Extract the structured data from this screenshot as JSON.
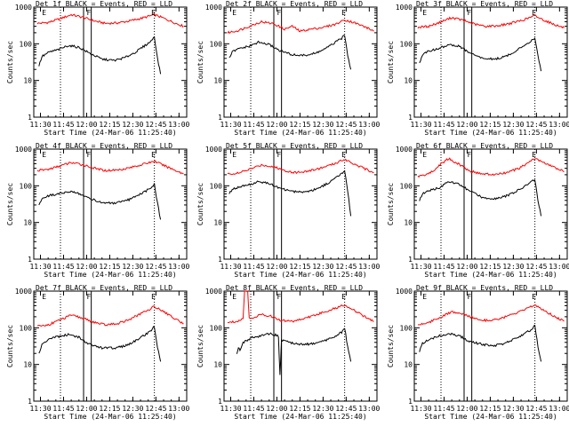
{
  "chart_data": [
    {
      "type": "line",
      "title": "Det 1f BLACK = Events, RED = LLD",
      "xlabel": "Start Time (24-Mar-06 11:25:40)",
      "ylabel": "Counts/sec",
      "x_tick_labels": [
        "11:30",
        "11:45",
        "12:00",
        "12:15",
        "12:30",
        "12:45",
        "13:00"
      ],
      "y_tick_labels": [
        "1",
        "10",
        "100",
        "1000"
      ],
      "yscale": "log",
      "ylim": [
        1,
        1000
      ],
      "xlim": [
        "11:25:40",
        "13:05"
      ],
      "markers": [
        "E",
        "F",
        "E"
      ],
      "series": [
        {
          "color": "#ff0000",
          "x": [
            "11:28",
            "11:35",
            "11:42",
            "11:50",
            "11:58",
            "12:05",
            "12:12",
            "12:20",
            "12:28",
            "12:36",
            "12:44",
            "12:50",
            "12:58",
            "13:03"
          ],
          "values": [
            360,
            380,
            470,
            620,
            520,
            420,
            360,
            370,
            420,
            500,
            620,
            500,
            360,
            300
          ]
        },
        {
          "color": "#000000",
          "x": [
            "11:29",
            "11:31",
            "11:36",
            "11:42",
            "11:48",
            "11:55",
            "12:02",
            "12:10",
            "12:18",
            "12:25",
            "12:32",
            "12:38",
            "12:42",
            "12:44",
            "12:46",
            "12:48"
          ],
          "values": [
            25,
            45,
            60,
            70,
            90,
            80,
            55,
            38,
            35,
            42,
            60,
            90,
            120,
            160,
            40,
            15
          ]
        }
      ]
    },
    {
      "type": "line",
      "title": "Det 2f BLACK = Events, RED = LLD",
      "xlabel": "Start Time (24-Mar-06 11:25:40)",
      "ylabel": "Counts/sec",
      "x_tick_labels": [
        "11:30",
        "11:45",
        "12:00",
        "12:15",
        "12:30",
        "12:45",
        "13:00"
      ],
      "y_tick_labels": [
        "1",
        "10",
        "100",
        "1000"
      ],
      "yscale": "log",
      "ylim": [
        1,
        1000
      ],
      "xlim": [
        "11:25:40",
        "13:05"
      ],
      "markers": [
        "E",
        "F",
        "E"
      ],
      "series": [
        {
          "color": "#ff0000",
          "x": [
            "11:28",
            "11:35",
            "11:42",
            "11:50",
            "11:58",
            "12:05",
            "12:10",
            "12:15",
            "12:22",
            "12:30",
            "12:38",
            "12:44",
            "12:50",
            "12:58",
            "13:03"
          ],
          "values": [
            200,
            230,
            300,
            400,
            350,
            250,
            300,
            220,
            250,
            280,
            340,
            450,
            380,
            280,
            220
          ]
        },
        {
          "color": "#000000",
          "x": [
            "11:29",
            "11:31",
            "11:36",
            "11:42",
            "11:48",
            "11:55",
            "12:02",
            "12:10",
            "12:18",
            "12:25",
            "12:32",
            "12:38",
            "12:42",
            "12:44",
            "12:46",
            "12:48"
          ],
          "values": [
            40,
            60,
            75,
            85,
            110,
            95,
            65,
            50,
            48,
            55,
            75,
            110,
            140,
            170,
            50,
            20
          ]
        }
      ]
    },
    {
      "type": "line",
      "title": "Det 3f BLACK = Events, RED = LLD",
      "xlabel": "Start Time (24-Mar-06 11:25:40)",
      "ylabel": "Counts/sec",
      "x_tick_labels": [
        "11:30",
        "11:45",
        "12:00",
        "12:15",
        "12:30",
        "12:45",
        "13:00"
      ],
      "y_tick_labels": [
        "1",
        "10",
        "100",
        "1000"
      ],
      "yscale": "log",
      "ylim": [
        1,
        1000
      ],
      "xlim": [
        "11:25:40",
        "13:05"
      ],
      "markers": [
        "E",
        "F",
        "E"
      ],
      "series": [
        {
          "color": "#ff0000",
          "x": [
            "11:28",
            "11:35",
            "11:42",
            "11:50",
            "11:58",
            "12:05",
            "12:12",
            "12:20",
            "12:28",
            "12:36",
            "12:44",
            "12:50",
            "12:58",
            "13:03"
          ],
          "values": [
            280,
            300,
            380,
            520,
            430,
            340,
            300,
            310,
            360,
            440,
            580,
            440,
            320,
            270
          ]
        },
        {
          "color": "#000000",
          "x": [
            "11:29",
            "11:31",
            "11:36",
            "11:42",
            "11:48",
            "11:55",
            "12:02",
            "12:10",
            "12:18",
            "12:25",
            "12:32",
            "12:38",
            "12:42",
            "12:44",
            "12:46",
            "12:48"
          ],
          "values": [
            30,
            50,
            65,
            75,
            95,
            85,
            55,
            40,
            38,
            45,
            65,
            95,
            125,
            150,
            45,
            18
          ]
        }
      ]
    },
    {
      "type": "line",
      "title": "Det 4f BLACK = Events, RED = LLD",
      "xlabel": "Start Time (24-Mar-06 11:25:40)",
      "ylabel": "Counts/sec",
      "x_tick_labels": [
        "11:30",
        "11:45",
        "12:00",
        "12:15",
        "12:30",
        "12:45",
        "13:00"
      ],
      "y_tick_labels": [
        "1",
        "10",
        "100",
        "1000"
      ],
      "yscale": "log",
      "ylim": [
        1,
        1000
      ],
      "xlim": [
        "11:25:40",
        "13:05"
      ],
      "markers": [
        "E",
        "F",
        "E"
      ],
      "series": [
        {
          "color": "#ff0000",
          "x": [
            "11:28",
            "11:35",
            "11:42",
            "11:50",
            "11:58",
            "12:05",
            "12:12",
            "12:20",
            "12:28",
            "12:36",
            "12:44",
            "12:50",
            "12:58",
            "13:03"
          ],
          "values": [
            260,
            280,
            340,
            430,
            370,
            300,
            260,
            270,
            310,
            380,
            470,
            360,
            260,
            210
          ]
        },
        {
          "color": "#000000",
          "x": [
            "11:29",
            "11:31",
            "11:36",
            "11:42",
            "11:48",
            "11:55",
            "12:02",
            "12:10",
            "12:18",
            "12:25",
            "12:32",
            "12:38",
            "12:42",
            "12:44",
            "12:46",
            "12:48"
          ],
          "values": [
            30,
            45,
            55,
            60,
            70,
            62,
            45,
            35,
            33,
            38,
            50,
            70,
            90,
            110,
            35,
            12
          ]
        }
      ]
    },
    {
      "type": "line",
      "title": "Det 5f BLACK = Events, RED = LLD",
      "xlabel": "Start Time (24-Mar-06 11:25:40)",
      "ylabel": "Counts/sec",
      "x_tick_labels": [
        "11:30",
        "11:45",
        "12:00",
        "12:15",
        "12:30",
        "12:45",
        "13:00"
      ],
      "y_tick_labels": [
        "1",
        "10",
        "100",
        "1000"
      ],
      "yscale": "log",
      "ylim": [
        1,
        1000
      ],
      "xlim": [
        "11:25:40",
        "13:05"
      ],
      "markers": [
        "E",
        "F",
        "E"
      ],
      "series": [
        {
          "color": "#ff0000",
          "x": [
            "11:28",
            "11:35",
            "11:42",
            "11:50",
            "11:58",
            "12:05",
            "12:12",
            "12:20",
            "12:28",
            "12:36",
            "12:44",
            "12:50",
            "12:58",
            "13:03"
          ],
          "values": [
            210,
            220,
            280,
            370,
            330,
            260,
            230,
            250,
            300,
            380,
            530,
            400,
            280,
            230
          ]
        },
        {
          "color": "#000000",
          "x": [
            "11:29",
            "11:31",
            "11:36",
            "11:42",
            "11:48",
            "11:55",
            "12:02",
            "12:10",
            "12:18",
            "12:25",
            "12:32",
            "12:38",
            "12:42",
            "12:44",
            "12:46",
            "12:48"
          ],
          "values": [
            60,
            80,
            95,
            105,
            130,
            115,
            85,
            70,
            68,
            80,
            110,
            160,
            220,
            260,
            70,
            15
          ]
        }
      ]
    },
    {
      "type": "line",
      "title": "Det 6f BLACK = Events, RED = LLD",
      "xlabel": "Start Time (24-Mar-06 11:25:40)",
      "ylabel": "Counts/sec",
      "x_tick_labels": [
        "11:30",
        "11:45",
        "12:00",
        "12:15",
        "12:30",
        "12:45",
        "13:00"
      ],
      "y_tick_labels": [
        "1",
        "10",
        "100",
        "1000"
      ],
      "yscale": "log",
      "ylim": [
        1,
        1000
      ],
      "xlim": [
        "11:25:40",
        "13:05"
      ],
      "markers": [
        "E",
        "F",
        "E"
      ],
      "series": [
        {
          "color": "#ff0000",
          "x": [
            "11:28",
            "11:33",
            "11:38",
            "11:43",
            "11:48",
            "11:55",
            "12:02",
            "12:10",
            "12:18",
            "12:26",
            "12:34",
            "12:44",
            "12:50",
            "12:58",
            "13:03"
          ],
          "values": [
            180,
            200,
            250,
            400,
            550,
            380,
            250,
            210,
            200,
            230,
            300,
            560,
            420,
            300,
            240
          ]
        },
        {
          "color": "#000000",
          "x": [
            "11:29",
            "11:31",
            "11:36",
            "11:42",
            "11:48",
            "11:55",
            "12:02",
            "12:10",
            "12:18",
            "12:25",
            "12:32",
            "12:38",
            "12:42",
            "12:44",
            "12:46",
            "12:48"
          ],
          "values": [
            40,
            60,
            75,
            90,
            130,
            110,
            70,
            48,
            45,
            52,
            70,
            100,
            130,
            150,
            40,
            15
          ]
        }
      ]
    },
    {
      "type": "line",
      "title": "Det 7f BLACK = Events, RED = LLD",
      "xlabel": "Start Time (24-Mar-06 11:25:40)",
      "ylabel": "Counts/sec",
      "x_tick_labels": [
        "11:30",
        "11:45",
        "12:00",
        "12:15",
        "12:30",
        "12:45",
        "13:00"
      ],
      "y_tick_labels": [
        "1",
        "10",
        "100",
        "1000"
      ],
      "yscale": "log",
      "ylim": [
        1,
        1000
      ],
      "xlim": [
        "11:25:40",
        "13:05"
      ],
      "markers": [
        "E",
        "F",
        "E"
      ],
      "series": [
        {
          "color": "#ff0000",
          "x": [
            "11:28",
            "11:35",
            "11:42",
            "11:50",
            "11:58",
            "12:05",
            "12:12",
            "12:20",
            "12:28",
            "12:36",
            "12:44",
            "12:50",
            "12:58",
            "13:03"
          ],
          "values": [
            110,
            120,
            160,
            220,
            180,
            140,
            120,
            130,
            170,
            250,
            380,
            280,
            170,
            130
          ]
        },
        {
          "color": "#000000",
          "x": [
            "11:29",
            "11:31",
            "11:36",
            "11:42",
            "11:48",
            "11:55",
            "12:02",
            "12:10",
            "12:18",
            "12:25",
            "12:32",
            "12:38",
            "12:42",
            "12:44",
            "12:46",
            "12:48"
          ],
          "values": [
            20,
            35,
            50,
            58,
            65,
            55,
            35,
            28,
            28,
            32,
            45,
            65,
            85,
            110,
            30,
            12
          ]
        }
      ]
    },
    {
      "type": "line",
      "title": "Det 8f BLACK = Events, RED = LLD",
      "xlabel": "Start Time (24-Mar-06 11:25:40)",
      "ylabel": "Counts/sec",
      "x_tick_labels": [
        "11:30",
        "11:45",
        "12:00",
        "12:15",
        "12:30",
        "12:45",
        "13:00"
      ],
      "y_tick_labels": [
        "1",
        "10",
        "100",
        "1000"
      ],
      "yscale": "log",
      "ylim": [
        1,
        1000
      ],
      "xlim": [
        "11:25:40",
        "13:05"
      ],
      "markers": [
        "E",
        "F",
        "E"
      ],
      "series": [
        {
          "color": "#ff0000",
          "x": [
            "11:28",
            "11:34",
            "11:38",
            "11:39",
            "11:41",
            "11:42",
            "11:46",
            "11:50",
            "11:56",
            "12:02",
            "12:10",
            "12:18",
            "12:26",
            "12:34",
            "12:44",
            "12:50",
            "12:58",
            "13:03"
          ],
          "values": [
            140,
            150,
            180,
            1000,
            1000,
            180,
            200,
            230,
            210,
            160,
            150,
            180,
            230,
            300,
            420,
            300,
            190,
            150
          ]
        },
        {
          "color": "#000000",
          "x": [
            "11:34",
            "11:35",
            "11:36",
            "11:38",
            "11:44",
            "11:50",
            "11:56",
            "12:01",
            "12:02",
            "12:03",
            "12:10",
            "12:18",
            "12:25",
            "12:32",
            "12:38",
            "12:42",
            "12:44",
            "12:46",
            "12:48"
          ],
          "values": [
            20,
            30,
            25,
            40,
            55,
            60,
            70,
            60,
            5,
            45,
            38,
            35,
            38,
            45,
            60,
            75,
            100,
            30,
            12
          ]
        }
      ]
    },
    {
      "type": "line",
      "title": "Det 9f BLACK = Events, RED = LLD",
      "xlabel": "Start Time (24-Mar-06 11:25:40)",
      "ylabel": "Counts/sec",
      "x_tick_labels": [
        "11:30",
        "11:45",
        "12:00",
        "12:15",
        "12:30",
        "12:45",
        "13:00"
      ],
      "y_tick_labels": [
        "1",
        "10",
        "100",
        "1000"
      ],
      "yscale": "log",
      "ylim": [
        1,
        1000
      ],
      "xlim": [
        "11:25:40",
        "13:05"
      ],
      "markers": [
        "E",
        "F",
        "E"
      ],
      "series": [
        {
          "color": "#ff0000",
          "x": [
            "11:28",
            "11:35",
            "11:42",
            "11:50",
            "11:58",
            "12:05",
            "12:12",
            "12:20",
            "12:28",
            "12:36",
            "12:44",
            "12:50",
            "12:58",
            "13:03"
          ],
          "values": [
            120,
            140,
            190,
            270,
            230,
            180,
            160,
            170,
            220,
            290,
            420,
            300,
            190,
            150
          ]
        },
        {
          "color": "#000000",
          "x": [
            "11:29",
            "11:31",
            "11:36",
            "11:42",
            "11:48",
            "11:55",
            "12:02",
            "12:10",
            "12:18",
            "12:25",
            "12:32",
            "12:38",
            "12:42",
            "12:44",
            "12:46",
            "12:48"
          ],
          "values": [
            22,
            38,
            50,
            60,
            70,
            60,
            42,
            35,
            33,
            38,
            52,
            72,
            90,
            120,
            30,
            12
          ]
        }
      ]
    }
  ]
}
